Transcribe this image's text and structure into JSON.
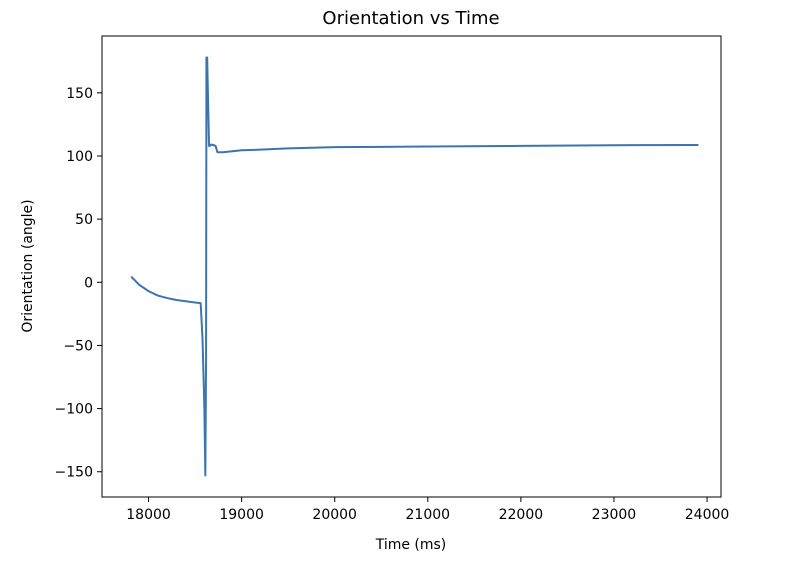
{
  "chart_data": {
    "type": "line",
    "title": "Orientation vs Time",
    "xlabel": "Time (ms)",
    "ylabel": "Orientation (angle)",
    "xlim": [
      17500,
      24150
    ],
    "ylim": [
      -170,
      195
    ],
    "xticks": [
      18000,
      19000,
      20000,
      21000,
      22000,
      23000,
      24000
    ],
    "yticks": [
      -150,
      -100,
      -50,
      0,
      50,
      100,
      150
    ],
    "xtick_labels": [
      "18000",
      "19000",
      "20000",
      "21000",
      "22000",
      "23000",
      "24000"
    ],
    "ytick_labels": [
      "−150",
      "−100",
      "−50",
      "0",
      "50",
      "100",
      "150"
    ],
    "grid": false,
    "series": [
      {
        "name": "Orientation",
        "color": "#3b75af",
        "x": [
          17820,
          17900,
          18000,
          18100,
          18200,
          18300,
          18400,
          18500,
          18560,
          18580,
          18600,
          18610,
          18618,
          18622,
          18630,
          18640,
          18650,
          18660,
          18670,
          18680,
          18720,
          18740,
          18800,
          19000,
          19200,
          19500,
          20000,
          21000,
          22000,
          23000,
          23900
        ],
        "y": [
          4,
          -2,
          -7,
          -10.5,
          -12.5,
          -14,
          -15,
          -16,
          -16.5,
          -45,
          -100,
          -153,
          -60,
          178,
          178,
          142,
          108,
          108,
          109,
          109,
          108,
          103,
          103,
          104.5,
          105,
          106,
          107,
          107.5,
          108,
          108.5,
          108.7
        ]
      }
    ]
  }
}
